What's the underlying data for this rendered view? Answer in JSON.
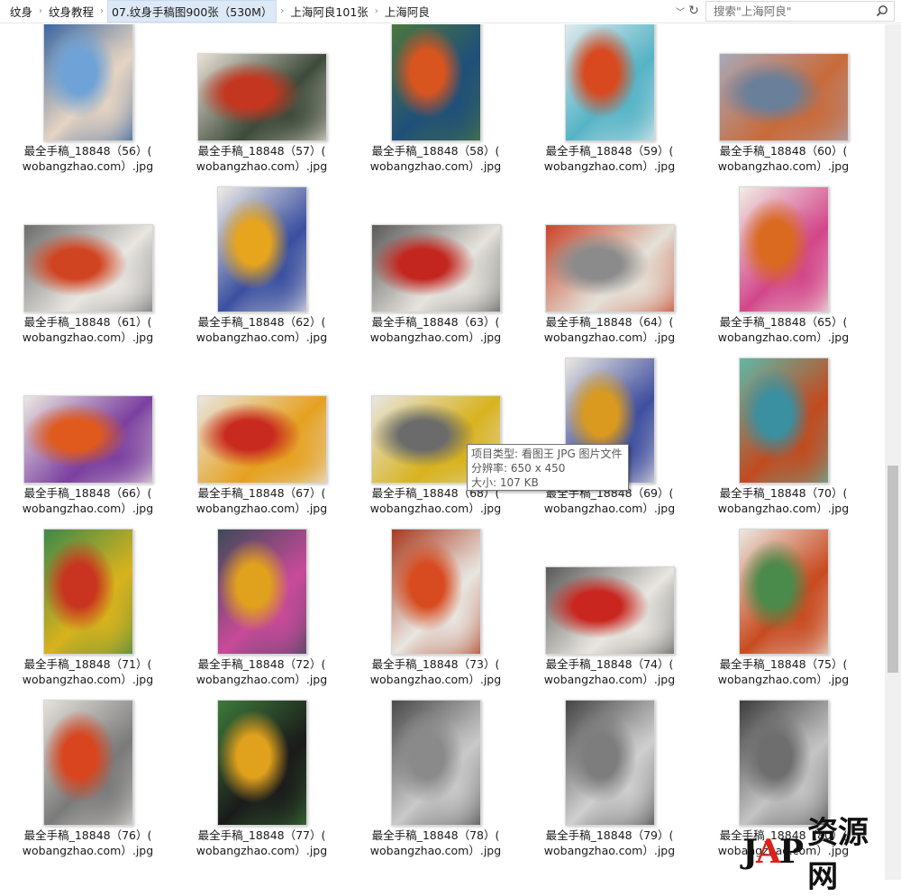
{
  "address": {
    "crumbs": [
      "纹身",
      "纹身教程",
      "07.纹身手稿图900张（530M）",
      "上海阿良101张",
      "上海阿良"
    ],
    "current_index": 2
  },
  "search": {
    "placeholder": "搜索\"上海阿良\""
  },
  "items": [
    {
      "line1": "最全手稿_18848（56）(",
      "line2": "wobangzhao.com）.jpg",
      "palette": [
        "#6fa2d6",
        "#e6d4c2",
        "#2f5f9e"
      ],
      "orient": "portrait"
    },
    {
      "line1": "最全手稿_18848（57）(",
      "line2": "wobangzhao.com）.jpg",
      "palette": [
        "#c4361f",
        "#3d4a3a",
        "#e9e2d6"
      ],
      "orient": "landscape"
    },
    {
      "line1": "最全手稿_18848（58）(",
      "line2": "wobangzhao.com）.jpg",
      "palette": [
        "#d9551f",
        "#1f4f7a",
        "#4d7a3a"
      ],
      "orient": "portrait"
    },
    {
      "line1": "最全手稿_18848（59）(",
      "line2": "wobangzhao.com）.jpg",
      "palette": [
        "#d8491f",
        "#55b3c6",
        "#e8eef0"
      ],
      "orient": "portrait"
    },
    {
      "line1": "最全手稿_18848（60）(",
      "line2": "wobangzhao.com）.jpg",
      "palette": [
        "#6a7f9a",
        "#c96a3a",
        "#a8a8b8"
      ],
      "orient": "landscape"
    },
    {
      "line1": "最全手稿_18848（61）(",
      "line2": "wobangzhao.com）.jpg",
      "palette": [
        "#d14421",
        "#e9e6e1",
        "#6d6d6d"
      ],
      "orient": "landscape"
    },
    {
      "line1": "最全手稿_18848（62）(",
      "line2": "wobangzhao.com）.jpg",
      "palette": [
        "#e6a51d",
        "#3a4fa0",
        "#f0ede6"
      ],
      "orient": "portrait"
    },
    {
      "line1": "最全手稿_18848（63）(",
      "line2": "wobangzhao.com）.jpg",
      "palette": [
        "#c2261f",
        "#e6e3dd",
        "#5a5a5a"
      ],
      "orient": "landscape"
    },
    {
      "line1": "最全手稿_18848（64）(",
      "line2": "wobangzhao.com）.jpg",
      "palette": [
        "#8b8b8b",
        "#e5e1d8",
        "#c9452a"
      ],
      "orient": "landscape"
    },
    {
      "line1": "最全手稿_18848（65）(",
      "line2": "wobangzhao.com）.jpg",
      "palette": [
        "#d96a1f",
        "#d2468a",
        "#f2eee6"
      ],
      "orient": "portrait"
    },
    {
      "line1": "最全手稿_18848（66）(",
      "line2": "wobangzhao.com）.jpg",
      "palette": [
        "#e05a1d",
        "#7b3fa0",
        "#ece8e2"
      ],
      "orient": "landscape"
    },
    {
      "line1": "最全手稿_18848（67）(",
      "line2": "wobangzhao.com）.jpg",
      "palette": [
        "#c82a1f",
        "#e5a01f",
        "#e9e6e1"
      ],
      "orient": "landscape"
    },
    {
      "line1": "最全手稿_18848（68）(",
      "line2": "wobangzhao.com）.jpg",
      "palette": [
        "#6b6b6b",
        "#d8b21d",
        "#e8e6e2"
      ],
      "orient": "landscape"
    },
    {
      "line1": "最全手稿_18848（69）(",
      "line2": "wobangzhao.com）.jpg",
      "palette": [
        "#d99a1f",
        "#3f4fa0",
        "#ebe8e2"
      ],
      "orient": "portrait"
    },
    {
      "line1": "最全手稿_18848（70）(",
      "line2": "wobangzhao.com）.jpg",
      "palette": [
        "#3a8fa0",
        "#c24a1f",
        "#5fb8a8"
      ],
      "orient": "portrait"
    },
    {
      "line1": "最全手稿_18848（71）(",
      "line2": "wobangzhao.com）.jpg",
      "palette": [
        "#c8341f",
        "#d9b21d",
        "#3d8a4a"
      ],
      "orient": "portrait"
    },
    {
      "line1": "最全手稿_18848（72）(",
      "line2": "wobangzhao.com）.jpg",
      "palette": [
        "#e0a11d",
        "#c84a9a",
        "#3d4a5a"
      ],
      "orient": "portrait"
    },
    {
      "line1": "最全手稿_18848（73）(",
      "line2": "wobangzhao.com）.jpg",
      "palette": [
        "#d84a1f",
        "#e9e6e1",
        "#a83a1f"
      ],
      "orient": "portrait"
    },
    {
      "line1": "最全手稿_18848（74）(",
      "line2": "wobangzhao.com）.jpg",
      "palette": [
        "#c8261f",
        "#e9e6e1",
        "#5a5a5a"
      ],
      "orient": "landscape"
    },
    {
      "line1": "最全手稿_18848（75）(",
      "line2": "wobangzhao.com）.jpg",
      "palette": [
        "#4a8a4a",
        "#c84a1f",
        "#ebe8e2"
      ],
      "orient": "portrait"
    },
    {
      "line1": "最全手稿_18848（76）(",
      "line2": "wobangzhao.com）.jpg",
      "palette": [
        "#d8451f",
        "#7a7a7a",
        "#e6e2dc"
      ],
      "orient": "portrait"
    },
    {
      "line1": "最全手稿_18848（77）(",
      "line2": "wobangzhao.com）.jpg",
      "palette": [
        "#e0a11d",
        "#1a1a1a",
        "#3d7a3a"
      ],
      "orient": "portrait"
    },
    {
      "line1": "最全手稿_18848（78）(",
      "line2": "wobangzhao.com）.jpg",
      "palette": [
        "#8a8a8a",
        "#c9c9c9",
        "#4a4a4a"
      ],
      "orient": "portrait"
    },
    {
      "line1": "最全手稿_18848（79）(",
      "line2": "wobangzhao.com）.jpg",
      "palette": [
        "#7d7d7d",
        "#cfcfcf",
        "#454545"
      ],
      "orient": "portrait"
    },
    {
      "line1": "最全手稿_18848（80）(",
      "line2": "wobangzhao.com）.jpg",
      "palette": [
        "#6e6e6e",
        "#c4c4c4",
        "#3d3d3d"
      ],
      "orient": "portrait"
    }
  ],
  "tooltip": {
    "type": "项目类型: 看图王 JPG 图片文件",
    "resolution": "分辨率: 650 x 450",
    "size": "大小: 107 KB"
  },
  "watermark": {
    "logo_black": "J",
    "logo_red": "A",
    "logo_black2": "P",
    "text": "资源网"
  },
  "colors": {
    "selected_crumb": "#dde9f7",
    "scroll_thumb": "#c2c2c2"
  }
}
